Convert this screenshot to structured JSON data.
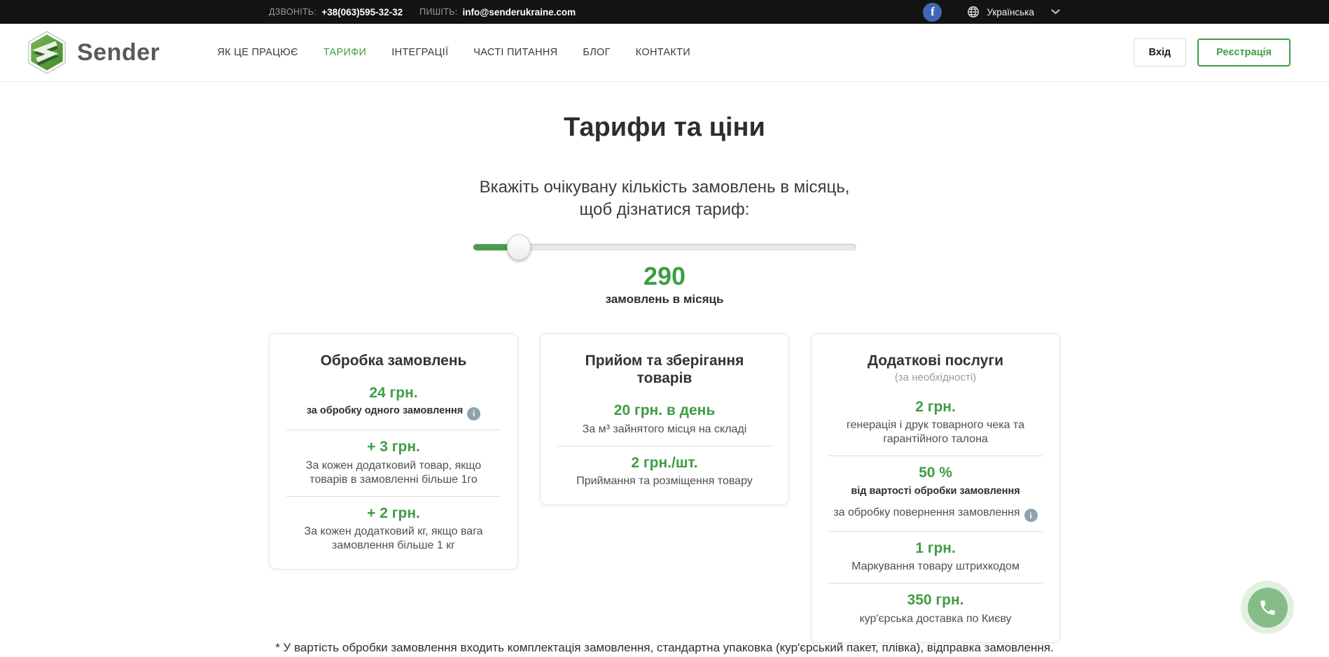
{
  "topbar": {
    "phone_label": "ДЗВОНІТЬ:",
    "phone": "+38(063)595-32-32",
    "email_label": "ПИШІТЬ:",
    "email": "info@senderukraine.com",
    "facebook_glyph": "f",
    "language": "Українська"
  },
  "header": {
    "brand": "Sender",
    "nav": [
      {
        "key": "how-it-works",
        "label": "ЯК ЦЕ ПРАЦЮЄ",
        "active": false
      },
      {
        "key": "tariffs",
        "label": "ТАРИФИ",
        "active": true
      },
      {
        "key": "integrations",
        "label": "ІНТЕГРАЦІЇ",
        "active": false
      },
      {
        "key": "faq",
        "label": "ЧАСТІ ПИТАННЯ",
        "active": false
      },
      {
        "key": "blog",
        "label": "БЛОГ",
        "active": false
      },
      {
        "key": "contacts",
        "label": "КОНТАКТИ",
        "active": false
      }
    ],
    "login_button": "Вхід",
    "register_button": "Реєстрація"
  },
  "main": {
    "title": "Тарифи та ціни",
    "slider": {
      "prompt_line1": "Вкажіть очікувану кількість замовлень в місяць,",
      "prompt_line2": "щоб дізнатися тариф:",
      "percent_filled": 12,
      "value": "290",
      "value_label": "замовлень в місяць"
    },
    "cards": [
      {
        "key": "order-processing",
        "title": "Обробка замовлень",
        "subtitle": "",
        "items": [
          {
            "price": "24 грн.",
            "desc": "за обробку одного замовлення",
            "desc_bold": true,
            "info": true
          },
          {
            "price": "+ 3 грн.",
            "desc": "За кожен додатковий товар, якщо товарів в замовленні більше 1го",
            "desc_bold": false,
            "info": false
          },
          {
            "price": "+ 2 грн.",
            "desc": "За кожен додатковий кг, якщо вага замовлення більше 1 кг",
            "desc_bold": false,
            "info": false
          }
        ]
      },
      {
        "key": "receiving-storage",
        "title": "Прийом та зберігання товарів",
        "subtitle": "",
        "items": [
          {
            "price": "20 грн. в день",
            "desc": "За м³ зайнятого місця на складі",
            "desc_bold": false,
            "info": false
          },
          {
            "price": "2 грн./шт.",
            "desc": "Приймання та розміщення товару",
            "desc_bold": false,
            "info": false
          }
        ]
      },
      {
        "key": "additional-services",
        "title": "Додаткові послуги",
        "subtitle": "(за необхідності)",
        "items": [
          {
            "price": "2 грн.",
            "desc": "генерація і друк товарного чека та гарантійного талона",
            "desc_bold": false,
            "info": false
          },
          {
            "price": "50 %",
            "desc": "від вартості обробки замовлення",
            "desc_bold": true,
            "info": false,
            "extra": {
              "text": "за обробку повернення замовлення",
              "info": true
            }
          },
          {
            "price": "1 грн.",
            "desc": "Маркування товару штрихкодом",
            "desc_bold": false,
            "info": false
          },
          {
            "price": "350 грн.",
            "desc": "кур'єрська доставка по Києву",
            "desc_bold": false,
            "info": false
          }
        ]
      }
    ],
    "footnote": "* У вартість обробки замовлення входить комплектація замовлення, стандартна упаковка (кур'єрський пакет, плівка), відправка замовлення."
  },
  "icons": {
    "info_glyph": "i"
  },
  "colors": {
    "accent_green": "#3f9d44",
    "topbar_bg": "#131313",
    "facebook_blue": "#4267b2",
    "info_icon_bg": "#8da3b0",
    "logo_green": "#4f9a3e",
    "fab_green": "#85bd88"
  }
}
